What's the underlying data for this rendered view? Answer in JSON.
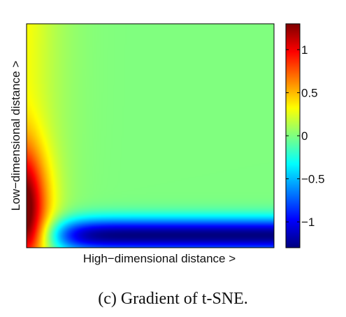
{
  "caption": "(c) Gradient of t-SNE.",
  "chart_data": {
    "type": "heatmap",
    "title": "",
    "xlabel": "High−dimensional distance >",
    "ylabel": "Low−dimensional distance >",
    "grid": false,
    "colormap": "jet",
    "colorbar": {
      "ticks": [
        1,
        0.5,
        0,
        -0.5,
        -1
      ],
      "tick_labels": [
        "1",
        "0.5",
        "0",
        "−0.5",
        "−1"
      ],
      "range": [
        -1.3,
        1.3
      ]
    },
    "description_values": {
      "max": 1.3,
      "min": -1.3,
      "plateau": 0.0
    }
  }
}
